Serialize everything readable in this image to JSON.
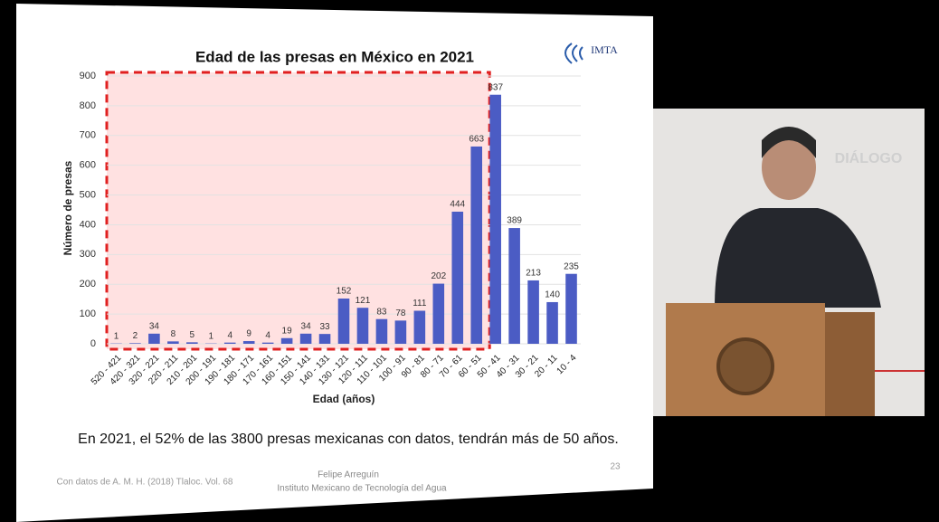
{
  "chart_data": {
    "type": "bar",
    "title": "Edad de las presas en México en 2021",
    "x_label": "Edad (años)",
    "y_label": "Número de presas",
    "categories": [
      "520 - 421",
      "420 - 321",
      "320 - 221",
      "220 - 211",
      "210 - 201",
      "200 - 191",
      "190 - 181",
      "180 - 171",
      "170 - 161",
      "160 - 151",
      "150 - 141",
      "140 - 131",
      "130 - 121",
      "120 - 111",
      "110 - 101",
      "100 - 91",
      "90 - 81",
      "80 - 71",
      "70 - 61",
      "60 - 51",
      "50 - 41",
      "40 - 31",
      "30 - 21",
      "20 - 11",
      "10 - 4"
    ],
    "values": [
      1,
      2,
      34,
      8,
      5,
      1,
      4,
      9,
      4,
      19,
      34,
      33,
      152,
      121,
      83,
      78,
      111,
      202,
      444,
      663,
      837,
      389,
      213,
      140,
      235
    ],
    "color": "#4b5cc4",
    "ylim": [
      0,
      900
    ],
    "yticks": [
      0,
      100,
      200,
      300,
      400,
      500,
      600,
      700,
      800,
      900
    ],
    "grid": true
  },
  "slide": {
    "logo": "IMTA",
    "caption": "En 2021, el 52% de las 3800 presas mexicanas con datos, tendrán más de 50 años.",
    "source": "Con datos de A. M. H. (2018) Tlaloc. Vol. 68",
    "author": "Felipe Arreguín",
    "institution": "Instituto Mexicano de Tecnología del Agua",
    "page": "23"
  },
  "video": {
    "backdrop_text": "DIÁLOGO"
  }
}
